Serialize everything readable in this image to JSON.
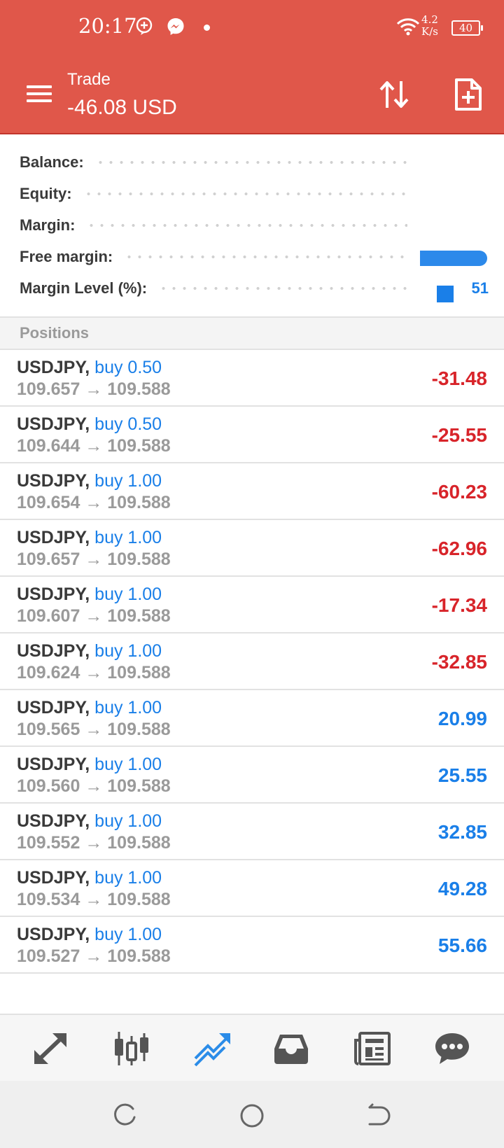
{
  "status_bar": {
    "time": "20:17",
    "net_speed_value": "4.2",
    "net_speed_unit": "K/s",
    "battery": "40",
    "icons": [
      "add-circle-icon",
      "messenger-icon",
      "wifi-icon"
    ]
  },
  "app_bar": {
    "title": "Trade",
    "subtitle": "-46.08 USD",
    "icons": [
      "menu-icon",
      "sort-icon",
      "new-order-icon"
    ]
  },
  "summary": {
    "rows": [
      {
        "label": "Balance:",
        "value": ""
      },
      {
        "label": "Equity:",
        "value": ""
      },
      {
        "label": "Margin:",
        "value": ""
      },
      {
        "label": "Free margin:",
        "value": ""
      },
      {
        "label": "Margin Level (%):",
        "value": "51"
      }
    ]
  },
  "positions": {
    "header": "Positions",
    "arrow": "→",
    "items": [
      {
        "symbol": "USDJPY,",
        "side": "buy 0.50",
        "open": "109.657",
        "current": "109.588",
        "profit": "-31.48"
      },
      {
        "symbol": "USDJPY,",
        "side": "buy 0.50",
        "open": "109.644",
        "current": "109.588",
        "profit": "-25.55"
      },
      {
        "symbol": "USDJPY,",
        "side": "buy 1.00",
        "open": "109.654",
        "current": "109.588",
        "profit": "-60.23"
      },
      {
        "symbol": "USDJPY,",
        "side": "buy 1.00",
        "open": "109.657",
        "current": "109.588",
        "profit": "-62.96"
      },
      {
        "symbol": "USDJPY,",
        "side": "buy 1.00",
        "open": "109.607",
        "current": "109.588",
        "profit": "-17.34"
      },
      {
        "symbol": "USDJPY,",
        "side": "buy 1.00",
        "open": "109.624",
        "current": "109.588",
        "profit": "-32.85"
      },
      {
        "symbol": "USDJPY,",
        "side": "buy 1.00",
        "open": "109.565",
        "current": "109.588",
        "profit": "20.99"
      },
      {
        "symbol": "USDJPY,",
        "side": "buy 1.00",
        "open": "109.560",
        "current": "109.588",
        "profit": "25.55"
      },
      {
        "symbol": "USDJPY,",
        "side": "buy 1.00",
        "open": "109.552",
        "current": "109.588",
        "profit": "32.85"
      },
      {
        "symbol": "USDJPY,",
        "side": "buy 1.00",
        "open": "109.534",
        "current": "109.588",
        "profit": "49.28"
      },
      {
        "symbol": "USDJPY,",
        "side": "buy 1.00",
        "open": "109.527",
        "current": "109.588",
        "profit": "55.66"
      }
    ]
  },
  "bottom_nav": {
    "items": [
      {
        "icon": "quotes-icon",
        "active": false
      },
      {
        "icon": "chart-icon",
        "active": false
      },
      {
        "icon": "trade-icon",
        "active": true
      },
      {
        "icon": "history-icon",
        "active": false
      },
      {
        "icon": "news-icon",
        "active": false
      },
      {
        "icon": "messages-icon",
        "active": false
      }
    ]
  },
  "system_nav": {
    "icons": [
      "recents-icon",
      "home-icon",
      "back-icon"
    ]
  },
  "colors": {
    "header_red": "#e0574a",
    "profit_negative": "#d8242a",
    "profit_positive": "#1a7fe8",
    "accent_blue": "#1a7fe8",
    "muted_text": "#9a9a9a",
    "nav_icon_gray": "#555555"
  }
}
